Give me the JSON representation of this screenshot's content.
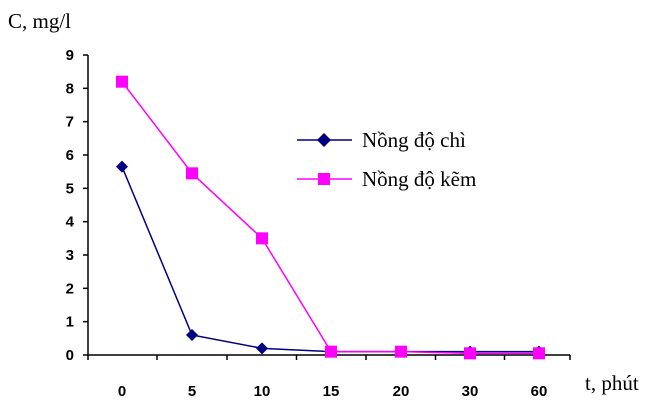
{
  "chart_data": {
    "type": "line",
    "title": "",
    "ylabel": "C, mg/l",
    "xlabel": "t, phút",
    "categories": [
      "0",
      "5",
      "10",
      "15",
      "20",
      "30",
      "60"
    ],
    "yticks": [
      "0",
      "1",
      "2",
      "3",
      "4",
      "5",
      "6",
      "7",
      "8",
      "9"
    ],
    "ylim": [
      0,
      9
    ],
    "grid": false,
    "legend_position": "right",
    "series": [
      {
        "name": "Nồng độ chì",
        "color": "#000080",
        "marker": "diamond",
        "values": [
          5.65,
          0.6,
          0.2,
          0.1,
          0.1,
          0.1,
          0.1
        ]
      },
      {
        "name": "Nồng độ kẽm",
        "color": "#ff00ff",
        "marker": "square",
        "values": [
          8.2,
          5.45,
          3.5,
          0.1,
          0.1,
          0.05,
          0.05
        ]
      }
    ]
  }
}
